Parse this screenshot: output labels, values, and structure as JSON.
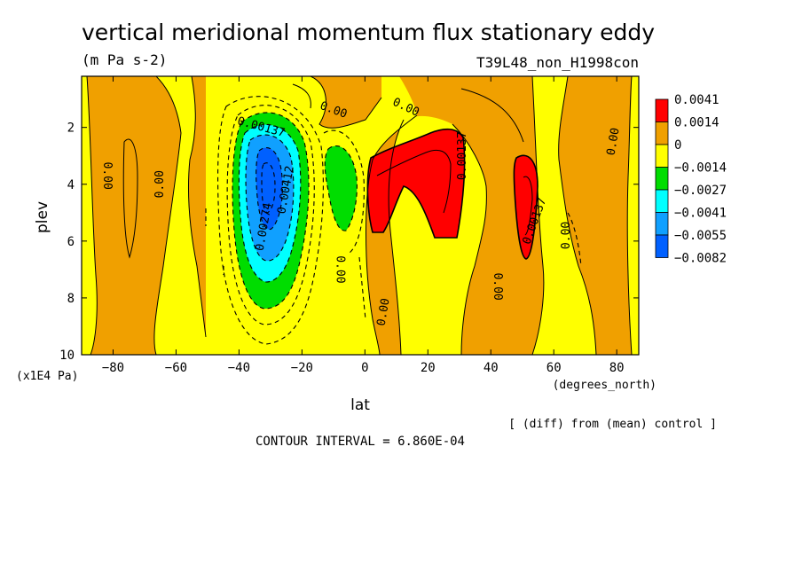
{
  "chart_data": {
    "type": "contour",
    "title": "vertical meridional momentum flux stationary eddy",
    "units": "(m Pa s-2)",
    "experiment": "T39L48_non_H1998con",
    "xlabel": "lat",
    "x_units": "(degrees_north)",
    "ylabel": "plev",
    "y_units": "(x1E4 Pa)",
    "xlim": [
      -90,
      87
    ],
    "ylim": [
      10,
      0.2
    ],
    "x_ticks": [
      -80,
      -60,
      -40,
      -20,
      0,
      20,
      40,
      60,
      80
    ],
    "y_ticks": [
      2,
      4,
      6,
      8,
      10
    ],
    "x_tick_labels": [
      "−80",
      "−60",
      "−40",
      "−20",
      "0",
      "20",
      "40",
      "60",
      "80"
    ],
    "y_tick_labels": [
      "2",
      "4",
      "6",
      "8",
      "10"
    ],
    "legend": {
      "placement": "right",
      "colors": [
        "#ff0000",
        "#f0a000",
        "#ffff00",
        "#00dd00",
        "#00ffff",
        "#10a0ff",
        "#0060ff"
      ],
      "labels": [
        "0.0041",
        "0.0014",
        "0",
        "−0.0014",
        "−0.0027",
        "−0.0041",
        "−0.0055",
        "−0.0082"
      ]
    },
    "contour_labels": [
      {
        "text": "0.00",
        "lat": -82,
        "plev": 3.7,
        "rotate": 90
      },
      {
        "text": "0.00",
        "lat": -65,
        "plev": 4.0,
        "rotate": -90
      },
      {
        "text": "0.00",
        "lat": -10,
        "plev": 1.4,
        "rotate": 20
      },
      {
        "text": "0.00137",
        "lat": -33,
        "plev": 2.0,
        "rotate": 15
      },
      {
        "text": "0.00412",
        "lat": -25,
        "plev": 4.2,
        "rotate": -80
      },
      {
        "text": "0.00274",
        "lat": -32,
        "plev": 5.5,
        "rotate": -80
      },
      {
        "text": "0.00",
        "lat": -8,
        "plev": 7.0,
        "rotate": 90
      },
      {
        "text": "0.00",
        "lat": 13,
        "plev": 1.3,
        "rotate": 25
      },
      {
        "text": "0.00137",
        "lat": 31,
        "plev": 3.0,
        "rotate": -90
      },
      {
        "text": "0.00137",
        "lat": 54,
        "plev": 5.3,
        "rotate": -70
      },
      {
        "text": "0.00",
        "lat": 6,
        "plev": 8.5,
        "rotate": -80
      },
      {
        "text": "0.00",
        "lat": 42,
        "plev": 7.6,
        "rotate": 90
      },
      {
        "text": "0.00",
        "lat": 64,
        "plev": 5.8,
        "rotate": -90
      },
      {
        "text": "0.00",
        "lat": 79,
        "plev": 2.5,
        "rotate": -80
      }
    ],
    "note": "[ (diff) from (mean) control ]",
    "contour_interval": "CONTOUR INTERVAL = 6.860E-04"
  }
}
